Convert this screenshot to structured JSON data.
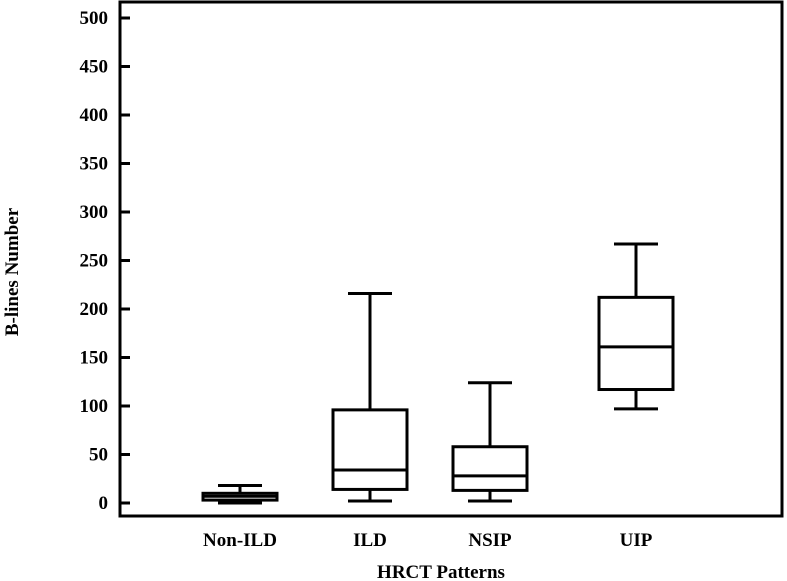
{
  "chart_data": {
    "type": "boxplot",
    "xlabel": "HRCT Patterns",
    "ylabel": "B-lines Number",
    "ylim": [
      0,
      500
    ],
    "yticks": [
      0,
      50,
      100,
      150,
      200,
      250,
      300,
      350,
      400,
      450,
      500
    ],
    "grid": false,
    "categories": [
      "Non-ILD",
      "ILD",
      "NSIP",
      "UIP"
    ],
    "boxes": [
      {
        "category": "Non-ILD",
        "whisker_low": 0,
        "q1": 3,
        "median": 7,
        "q3": 10,
        "whisker_high": 18
      },
      {
        "category": "ILD",
        "whisker_low": 2,
        "q1": 14,
        "median": 34,
        "q3": 96,
        "whisker_high": 216
      },
      {
        "category": "NSIP",
        "whisker_low": 2,
        "q1": 13,
        "median": 28,
        "q3": 58,
        "whisker_high": 124
      },
      {
        "category": "UIP",
        "whisker_low": 97,
        "q1": 117,
        "median": 161,
        "q3": 212,
        "whisker_high": 267
      }
    ],
    "color": "#000000"
  }
}
